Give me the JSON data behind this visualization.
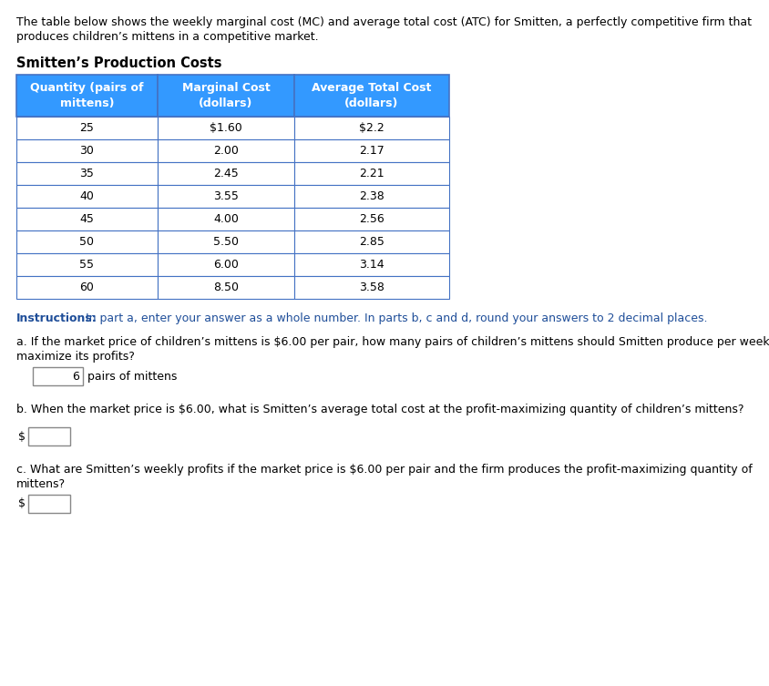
{
  "intro_text_line1": "The table below shows the weekly marginal cost (MC) and average total cost (ATC) for Smitten, a perfectly competitive firm that",
  "intro_text_line2": "produces children’s mittens in a competitive market.",
  "table_title": "Smitten’s Production Costs",
  "col_headers": [
    "Quantity (pairs of\nmittens)",
    "Marginal Cost\n(dollars)",
    "Average Total Cost\n(dollars)"
  ],
  "table_data": [
    [
      "25",
      "$1.60",
      "$2.2"
    ],
    [
      "30",
      "2.00",
      "2.17"
    ],
    [
      "35",
      "2.45",
      "2.21"
    ],
    [
      "40",
      "3.55",
      "2.38"
    ],
    [
      "45",
      "4.00",
      "2.56"
    ],
    [
      "50",
      "5.50",
      "2.85"
    ],
    [
      "55",
      "6.00",
      "3.14"
    ],
    [
      "60",
      "8.50",
      "3.58"
    ]
  ],
  "header_bg_color": "#3399ff",
  "header_text_color": "#ffffff",
  "row_bg_color": "#ffffff",
  "row_border_color": "#4472c4",
  "instructions_bold": "Instructions:",
  "instructions_text": " In part a, enter your answer as a whole number. In parts b, c and d, round your answers to 2 decimal places.",
  "instructions_color": "#1f4e99",
  "q_a_text_line1": "a. If the market price of children’s mittens is $6.00 per pair, how many pairs of children’s mittens should Smitten produce per week to",
  "q_a_text_line2": "maximize its profits?",
  "q_a_answer": "6",
  "q_a_suffix": "pairs of mittens",
  "q_b_text": "b. When the market price is $6.00, what is Smitten’s average total cost at the profit-maximizing quantity of children’s mittens?",
  "q_c_text_line1": "c. What are Smitten’s weekly profits if the market price is $6.00 per pair and the firm produces the profit-maximizing quantity of",
  "q_c_text_line2": "mittens?",
  "dollar_sign": "$",
  "bg_color": "#ffffff",
  "text_color": "#000000",
  "font_size_intro": 9.0,
  "font_size_table_title": 10.5,
  "font_size_table_header": 9.0,
  "font_size_table_data": 9.0,
  "font_size_instructions": 9.0,
  "font_size_questions": 9.0
}
